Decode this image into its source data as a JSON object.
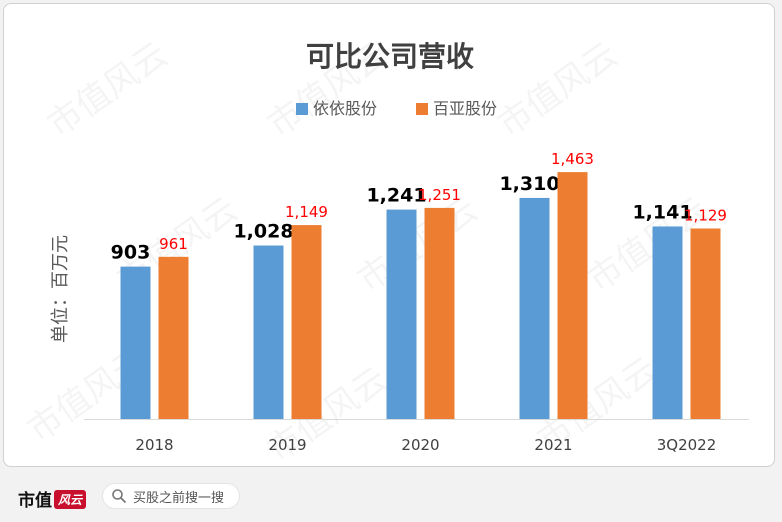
{
  "chart_data": {
    "type": "bar",
    "title": "可比公司营收",
    "ylabel": "单位：百万元",
    "categories": [
      "2018",
      "2019",
      "2020",
      "2021",
      "3Q2022"
    ],
    "series": [
      {
        "name": "依依股份",
        "values": [
          903,
          1028,
          1241,
          1310,
          1141
        ],
        "color": "#5b9bd5",
        "label_color": "#000000",
        "label_bold": true
      },
      {
        "name": "百亚股份",
        "values": [
          961,
          1149,
          1251,
          1463,
          1129
        ],
        "color": "#ed7d31",
        "label_color": "#ff0000",
        "label_bold": false
      }
    ],
    "data_labels": [
      [
        "903",
        "1,028",
        "1,241",
        "1,310",
        "1,141"
      ],
      [
        "961",
        "1,149",
        "1,251",
        "1,463",
        "1,129"
      ]
    ],
    "ylim": [
      0,
      1600
    ],
    "grid": false,
    "legend": "top-center"
  },
  "watermark": "市值风云",
  "footer": {
    "brand": "市值",
    "brand_badge": "风云",
    "search_placeholder": "买股之前搜一搜"
  },
  "colors": {
    "blue": "#5b9bd5",
    "orange": "#ed7d31",
    "red_label": "#ff0000"
  }
}
